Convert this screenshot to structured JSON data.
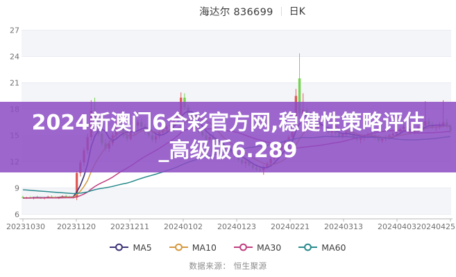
{
  "header": {
    "stock_title": "海达尔 836699",
    "period_label": "日K"
  },
  "watermark": {
    "line1": "2024新澳门6合彩官方网,稳健性策略评估",
    "line2": "_高级版6.289",
    "band_color": "#8c4bc4",
    "band_opacity": 0.85,
    "text_color": "#ffffff"
  },
  "legend": [
    {
      "label": "MA5",
      "color": "#3d3578"
    },
    {
      "label": "MA10",
      "color": "#d6993e"
    },
    {
      "label": "MA30",
      "color": "#c03e80"
    },
    {
      "label": "MA60",
      "color": "#2a8a8c"
    }
  ],
  "source": {
    "label": "数据来源：",
    "value": "恒生聚源"
  },
  "chart_data": {
    "type": "candlestick",
    "title": "海达尔 836699 日K",
    "y_ticks": [
      6,
      9,
      12,
      15,
      18,
      21,
      24,
      27
    ],
    "ylim": [
      6,
      28
    ],
    "x_tick_labels": [
      "20231030",
      "20231120",
      "20231211",
      "20240102",
      "20240123",
      "20240221",
      "20240313",
      "20240403",
      "20240425"
    ],
    "up_color": "#e05b55",
    "down_color": "#74d44d",
    "grid": "horizontal-stripes",
    "legend_position": "bottom",
    "ma_periods": [
      5,
      10,
      30,
      60
    ],
    "prehistory": {
      "far_avg": 9.8,
      "near_avg": 7.85
    },
    "candles_ohlc": [
      [
        7.95,
        8.1,
        7.8,
        7.85
      ],
      [
        7.85,
        8.0,
        7.75,
        7.9
      ],
      [
        7.9,
        8.05,
        7.8,
        7.85
      ],
      [
        7.85,
        8.0,
        7.7,
        7.95
      ],
      [
        7.95,
        8.1,
        7.85,
        7.9
      ],
      [
        7.9,
        8.0,
        7.75,
        7.8
      ],
      [
        7.8,
        7.95,
        7.7,
        7.9
      ],
      [
        7.9,
        8.1,
        7.85,
        8.0
      ],
      [
        8.0,
        8.15,
        7.9,
        7.95
      ],
      [
        7.95,
        8.05,
        7.8,
        7.85
      ],
      [
        7.85,
        8.0,
        7.75,
        7.95
      ],
      [
        7.95,
        8.15,
        7.9,
        8.05
      ],
      [
        8.05,
        8.2,
        7.95,
        8.0
      ],
      [
        8.0,
        8.1,
        7.85,
        7.9
      ],
      [
        7.9,
        8.05,
        7.8,
        8.0
      ],
      [
        7.9,
        10.9,
        7.6,
        10.7
      ],
      [
        10.7,
        12.2,
        10.3,
        11.9
      ],
      [
        11.9,
        13.6,
        11.5,
        13.3
      ],
      [
        13.3,
        15.2,
        12.9,
        14.8
      ],
      [
        14.8,
        19.0,
        14.4,
        17.8
      ],
      [
        17.8,
        19.3,
        16.2,
        16.6
      ],
      [
        16.6,
        17.0,
        14.9,
        15.2
      ],
      [
        15.2,
        15.8,
        13.8,
        14.1
      ],
      [
        14.1,
        14.6,
        13.2,
        13.5
      ],
      [
        13.5,
        14.4,
        13.1,
        14.1
      ],
      [
        14.1,
        15.3,
        13.8,
        15.0
      ],
      [
        15.0,
        16.6,
        14.7,
        16.3
      ],
      [
        16.3,
        17.0,
        15.6,
        15.9
      ],
      [
        15.9,
        16.2,
        14.7,
        15.0
      ],
      [
        15.0,
        15.5,
        14.3,
        14.6
      ],
      [
        14.6,
        15.7,
        14.4,
        15.4
      ],
      [
        15.4,
        16.4,
        15.1,
        16.1
      ],
      [
        16.1,
        16.8,
        15.5,
        16.5
      ],
      [
        16.5,
        16.9,
        15.8,
        16.0
      ],
      [
        16.0,
        16.3,
        15.1,
        15.4
      ],
      [
        15.4,
        15.8,
        14.7,
        15.0
      ],
      [
        15.0,
        15.4,
        14.2,
        14.5
      ],
      [
        14.5,
        15.1,
        14.1,
        14.9
      ],
      [
        14.9,
        15.6,
        14.6,
        15.3
      ],
      [
        15.3,
        16.0,
        15.0,
        15.7
      ],
      [
        15.7,
        16.3,
        15.3,
        16.0
      ],
      [
        16.0,
        16.5,
        15.5,
        16.2
      ],
      [
        16.2,
        17.1,
        15.9,
        16.8
      ],
      [
        16.8,
        17.4,
        16.2,
        17.2
      ],
      [
        17.2,
        19.9,
        16.8,
        19.3
      ],
      [
        19.3,
        19.8,
        17.9,
        18.2
      ],
      [
        18.2,
        18.5,
        17.0,
        17.3
      ],
      [
        17.3,
        17.7,
        16.3,
        16.5
      ],
      [
        16.5,
        16.9,
        15.8,
        16.0
      ],
      [
        16.0,
        16.4,
        15.2,
        15.4
      ],
      [
        15.4,
        15.9,
        14.8,
        15.0
      ],
      [
        15.0,
        15.4,
        14.3,
        14.5
      ],
      [
        14.5,
        15.1,
        14.1,
        14.8
      ],
      [
        14.8,
        15.2,
        14.2,
        14.4
      ],
      [
        14.4,
        14.7,
        13.7,
        13.9
      ],
      [
        13.9,
        14.3,
        13.3,
        13.5
      ],
      [
        13.5,
        13.9,
        12.9,
        13.1
      ],
      [
        13.1,
        13.6,
        12.7,
        13.3
      ],
      [
        13.3,
        13.7,
        12.8,
        13.0
      ],
      [
        13.0,
        13.3,
        12.4,
        12.6
      ],
      [
        12.6,
        12.9,
        12.0,
        12.2
      ],
      [
        12.2,
        12.5,
        11.6,
        11.8
      ],
      [
        11.8,
        12.2,
        11.3,
        12.0
      ],
      [
        12.0,
        12.3,
        11.4,
        11.6
      ],
      [
        11.6,
        11.9,
        11.1,
        11.3
      ],
      [
        11.3,
        11.7,
        10.9,
        11.1
      ],
      [
        11.1,
        11.4,
        10.8,
        11.0
      ],
      [
        11.0,
        11.6,
        10.5,
        11.4
      ],
      [
        11.4,
        12.0,
        11.2,
        11.8
      ],
      [
        11.8,
        12.5,
        11.6,
        12.3
      ],
      [
        12.3,
        13.0,
        12.1,
        12.8
      ],
      [
        12.8,
        13.5,
        12.6,
        13.3
      ],
      [
        13.3,
        14.0,
        13.1,
        13.8
      ],
      [
        13.8,
        14.5,
        13.6,
        14.3
      ],
      [
        14.3,
        15.0,
        14.1,
        14.8
      ],
      [
        14.8,
        15.6,
        14.6,
        15.4
      ],
      [
        15.5,
        20.3,
        15.3,
        19.5
      ],
      [
        21.5,
        24.35,
        16.8,
        17.5
      ],
      [
        17.0,
        19.8,
        16.4,
        17.9
      ],
      [
        17.9,
        18.2,
        16.6,
        16.9
      ],
      [
        16.9,
        17.3,
        16.0,
        16.2
      ],
      [
        16.2,
        16.6,
        15.5,
        15.8
      ],
      [
        15.8,
        16.4,
        15.4,
        16.1
      ],
      [
        16.1,
        16.6,
        15.7,
        16.3
      ],
      [
        16.3,
        16.5,
        15.5,
        15.7
      ],
      [
        15.7,
        16.0,
        15.1,
        15.3
      ],
      [
        15.3,
        15.7,
        14.9,
        15.5
      ],
      [
        15.5,
        15.8,
        15.0,
        15.2
      ],
      [
        15.2,
        15.5,
        14.7,
        14.9
      ],
      [
        14.9,
        15.3,
        14.6,
        15.1
      ],
      [
        15.1,
        15.6,
        14.8,
        15.4
      ],
      [
        15.4,
        15.8,
        15.0,
        15.2
      ],
      [
        15.2,
        15.5,
        14.6,
        14.8
      ],
      [
        14.8,
        15.1,
        14.3,
        14.5
      ],
      [
        14.5,
        14.9,
        14.1,
        14.7
      ],
      [
        14.7,
        15.1,
        14.4,
        14.9
      ],
      [
        14.9,
        15.3,
        14.6,
        15.1
      ],
      [
        15.1,
        15.5,
        14.8,
        15.0
      ],
      [
        15.0,
        15.3,
        14.5,
        14.7
      ],
      [
        14.7,
        15.0,
        14.2,
        14.4
      ],
      [
        14.4,
        14.8,
        14.1,
        14.6
      ],
      [
        14.6,
        15.0,
        14.3,
        14.8
      ],
      [
        14.8,
        15.2,
        14.5,
        15.0
      ],
      [
        15.0,
        15.4,
        14.7,
        15.2
      ],
      [
        15.2,
        15.6,
        14.9,
        15.4
      ],
      [
        15.4,
        15.9,
        15.1,
        15.7
      ],
      [
        15.7,
        16.3,
        15.4,
        16.0
      ],
      [
        16.0,
        16.4,
        15.5,
        15.7
      ],
      [
        15.7,
        16.0,
        15.2,
        15.4
      ],
      [
        15.4,
        15.8,
        15.1,
        15.6
      ],
      [
        15.6,
        16.1,
        15.3,
        15.9
      ],
      [
        15.9,
        16.4,
        15.6,
        16.1
      ],
      [
        16.1,
        18.9,
        15.8,
        16.6
      ],
      [
        16.6,
        17.0,
        16.0,
        16.2
      ],
      [
        16.2,
        16.6,
        15.7,
        15.9
      ],
      [
        15.9,
        16.3,
        15.5,
        16.0
      ],
      [
        16.0,
        16.5,
        15.7,
        16.2
      ],
      [
        16.2,
        19.0,
        15.9,
        16.5
      ],
      [
        16.5,
        16.9,
        15.8,
        16.0
      ],
      [
        16.0,
        16.3,
        15.2,
        15.5
      ]
    ]
  }
}
